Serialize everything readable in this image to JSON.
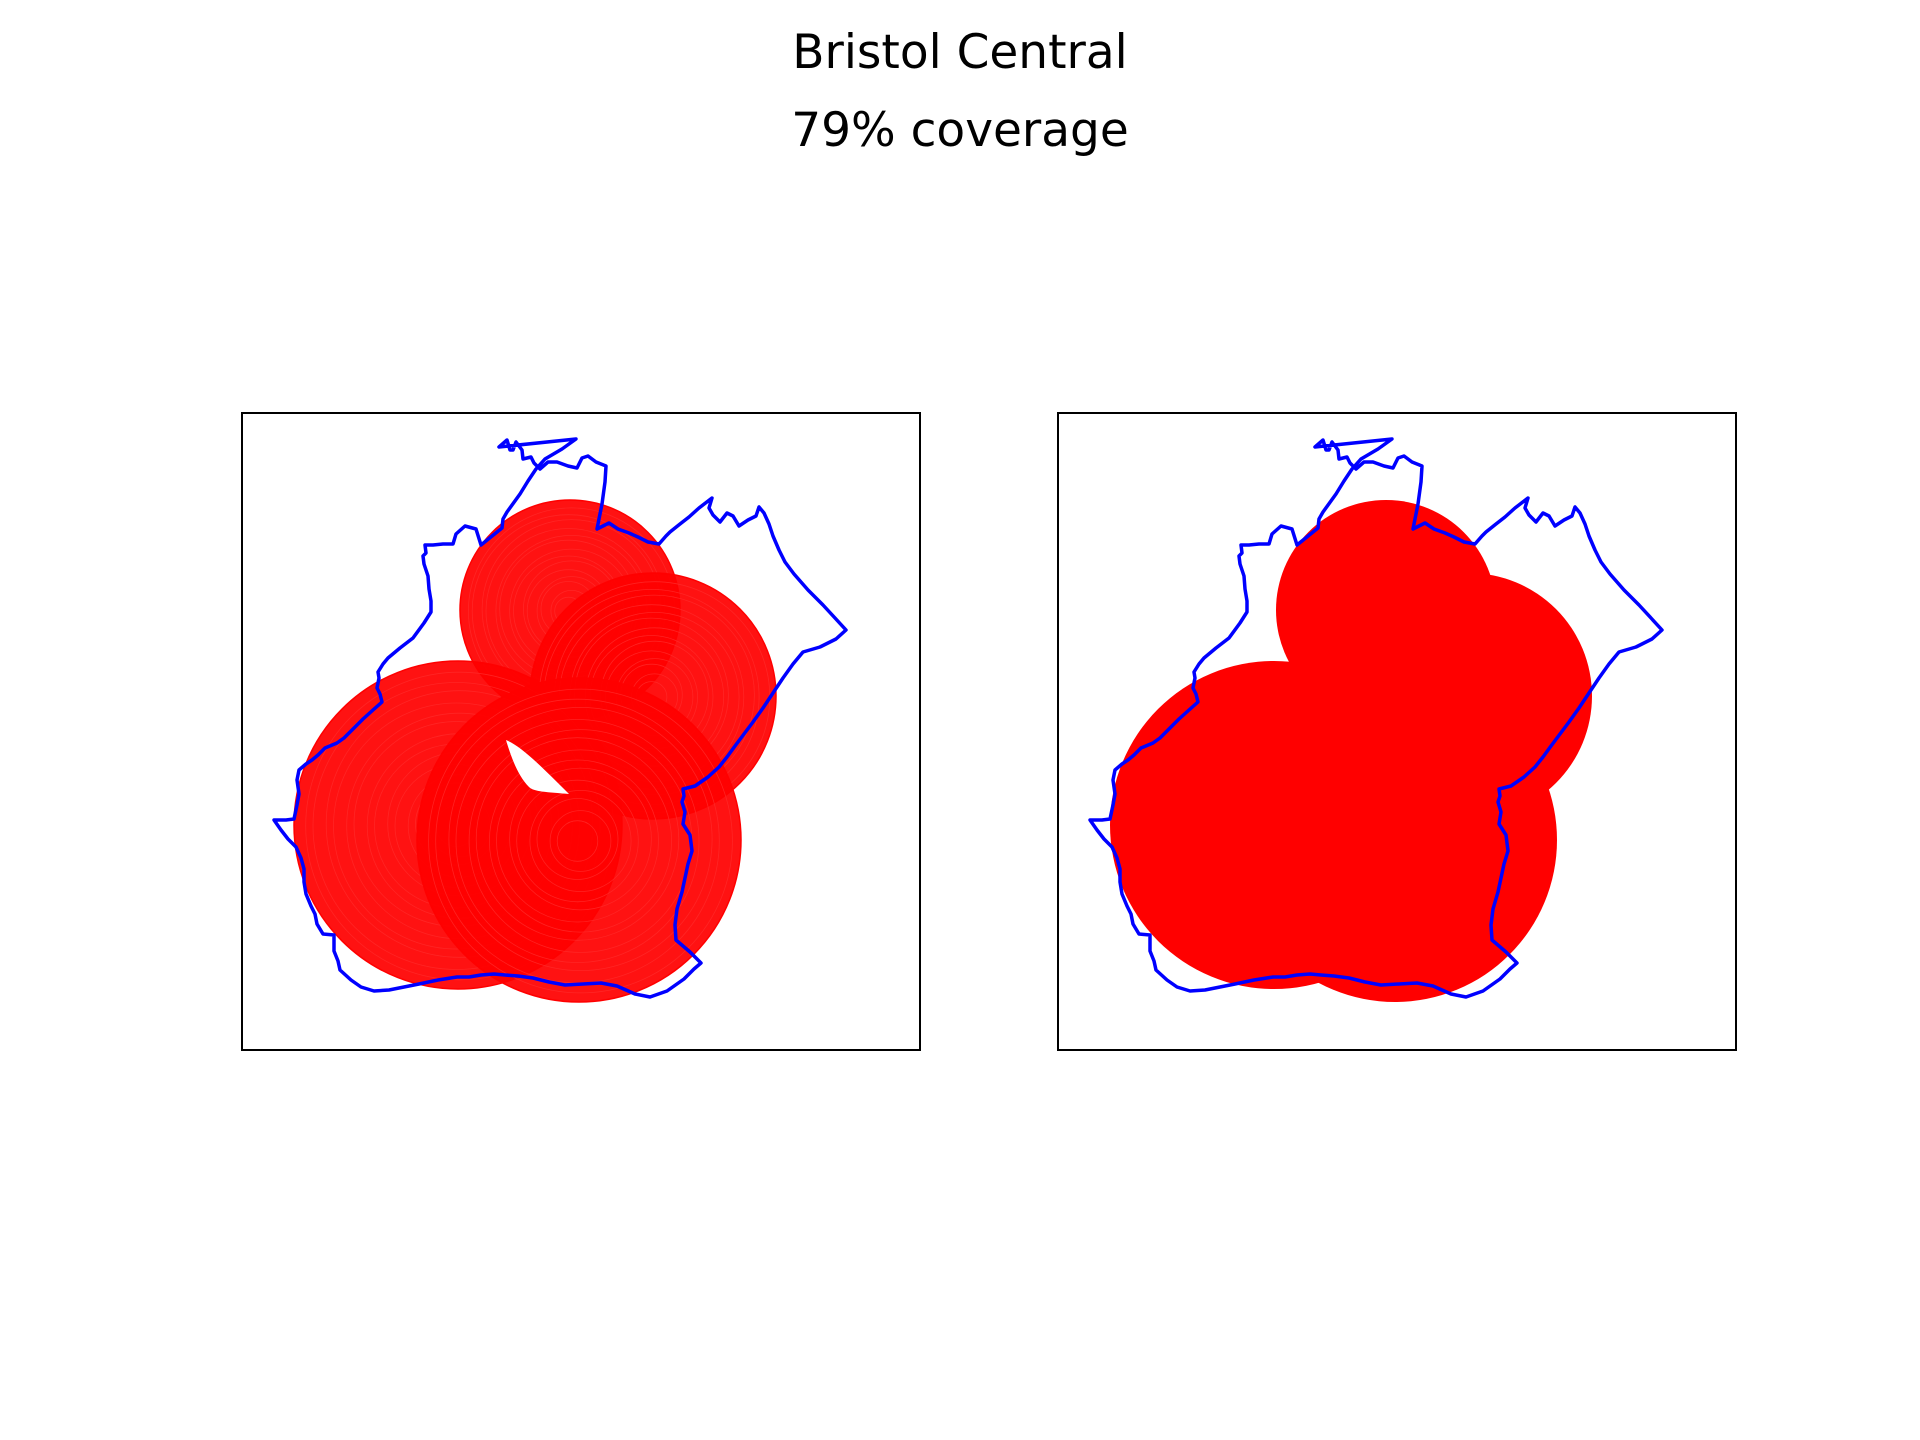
{
  "figure": {
    "title": "Bristol Central",
    "subtitle": "79% coverage"
  },
  "map": {
    "boundary_name": "Bristol Central",
    "coverage_percent": 79,
    "colors": {
      "boundary": "#0000ff",
      "coverage": "#ff0000",
      "frame": "#000000",
      "background": "#ffffff"
    },
    "panels": [
      {
        "id": "left",
        "style": "ring-outlines",
        "shows_uncovered_hole": true
      },
      {
        "id": "right",
        "style": "filled-union",
        "shows_uncovered_hole": false
      }
    ]
  }
}
